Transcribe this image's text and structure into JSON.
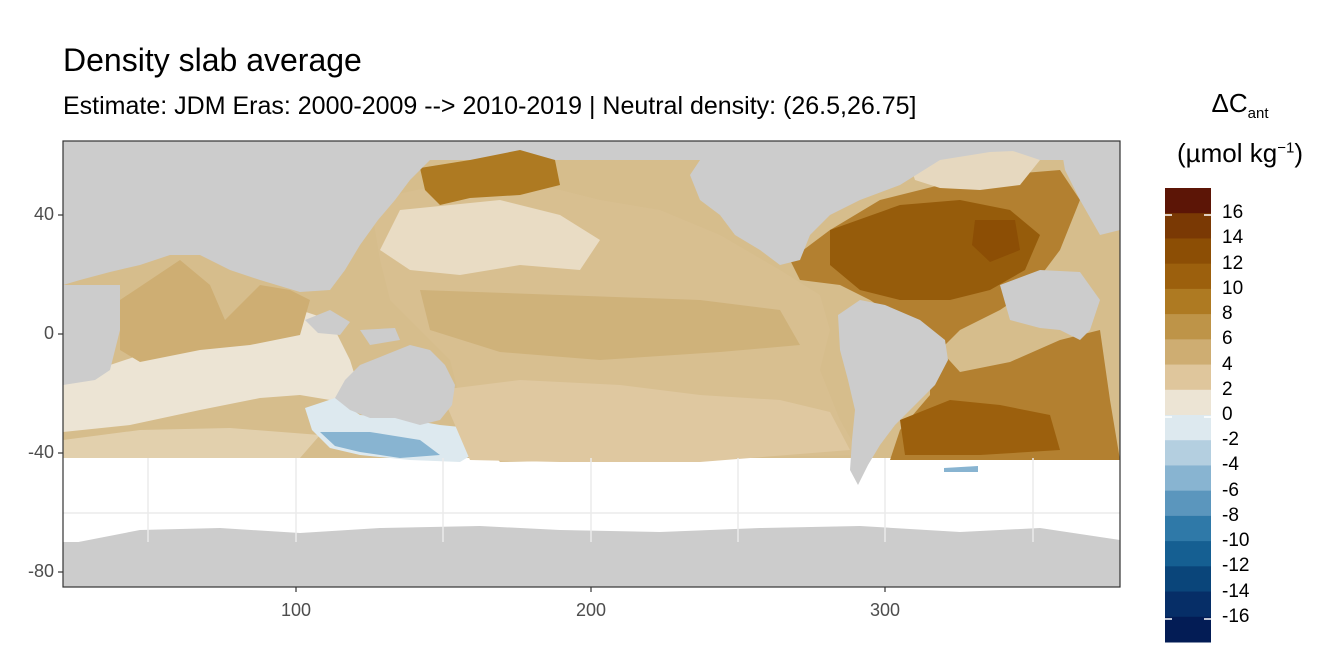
{
  "title": "Density slab average",
  "subtitle": "Estimate: JDM Eras: 2000-2009 --> 2010-2019 | Neutral density: (26.5,26.75]",
  "axes": {
    "x_ticks": [
      "100",
      "200",
      "300"
    ],
    "y_ticks": [
      "40",
      "0",
      "-40",
      "-80"
    ]
  },
  "legend": {
    "title_main": "ΔC",
    "title_sub": "ant",
    "units_main": "(µmol kg",
    "units_sup": "−1",
    "units_close": ")",
    "labels": [
      "16",
      "14",
      "12",
      "10",
      "8",
      "6",
      "4",
      "2",
      "0",
      "-2",
      "-4",
      "-6",
      "-8",
      "-10",
      "-12",
      "-14",
      "-16"
    ],
    "colors": [
      "#5c1506",
      "#7a3904",
      "#8c4e05",
      "#9c600d",
      "#ae7a22",
      "#be9448",
      "#cead72",
      "#dfc69c",
      "#ece4d4",
      "#dde9ef",
      "#b4cfe0",
      "#88b4d1",
      "#5b96bd",
      "#2f79a8",
      "#155f92",
      "#0a457a",
      "#062e67",
      "#031c55"
    ]
  },
  "colors": {
    "land": "#cccccc",
    "panel_border": "#333333",
    "grid": "#ebebeb"
  }
}
